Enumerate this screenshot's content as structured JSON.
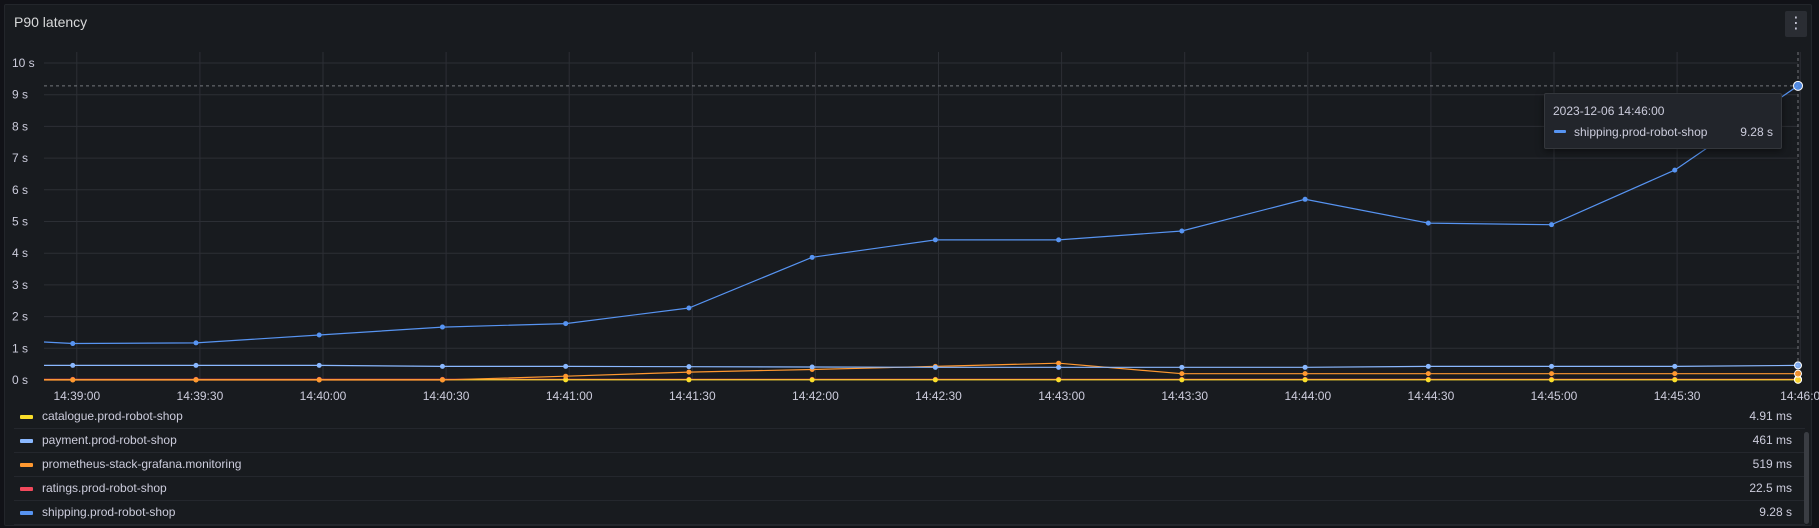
{
  "panel": {
    "title": "P90 latency",
    "menu_icon": "vertical-dots-icon"
  },
  "chart_data": {
    "type": "line",
    "title": "P90 latency",
    "ylim": [
      0,
      10
    ],
    "y_unit": "s",
    "y_ticks": [
      "0 s",
      "1 s",
      "2 s",
      "3 s",
      "4 s",
      "5 s",
      "6 s",
      "7 s",
      "8 s",
      "9 s",
      "10 s"
    ],
    "x_ticks": [
      "14:39:00",
      "14:39:30",
      "14:40:00",
      "14:40:30",
      "14:41:00",
      "14:41:30",
      "14:42:00",
      "14:42:30",
      "14:43:00",
      "14:43:30",
      "14:44:00",
      "14:44:30",
      "14:45:00",
      "14:45:30",
      "14:46:0"
    ],
    "x": [
      "14:38:53",
      "14:39:00",
      "14:39:30",
      "14:40:00",
      "14:40:30",
      "14:41:00",
      "14:41:30",
      "14:42:00",
      "14:42:30",
      "14:43:00",
      "14:43:30",
      "14:44:00",
      "14:44:30",
      "14:45:00",
      "14:45:30",
      "14:46:00"
    ],
    "grid": true,
    "crosshair": {
      "x": "14:46:00",
      "y": 9.28
    },
    "series": [
      {
        "name": "catalogue.prod-robot-shop",
        "color": "#fade2a",
        "legend_value": "4.91 ms",
        "values": [
          0.005,
          0.005,
          0.005,
          0.005,
          0.005,
          0.005,
          0.005,
          0.005,
          0.005,
          0.005,
          0.005,
          0.005,
          0.005,
          0.005,
          0.005,
          0.005
        ]
      },
      {
        "name": "payment.prod-robot-shop",
        "color": "#8ab8ff",
        "legend_value": "461 ms",
        "values": [
          0.46,
          0.46,
          0.46,
          0.46,
          0.43,
          0.43,
          0.42,
          0.41,
          0.4,
          0.4,
          0.4,
          0.4,
          0.43,
          0.43,
          0.43,
          0.46
        ]
      },
      {
        "name": "prometheus-stack-grafana.monitoring",
        "color": "#ff9830",
        "legend_value": "519 ms",
        "values": [
          0.0,
          0.0,
          0.0,
          0.0,
          0.0,
          0.12,
          0.25,
          0.33,
          0.43,
          0.53,
          0.2,
          0.2,
          0.2,
          0.2,
          0.2,
          0.2
        ]
      },
      {
        "name": "ratings.prod-robot-shop",
        "color": "#f2495c",
        "legend_value": "22.5 ms",
        "values": [
          0.02,
          0.02,
          0.02,
          0.02,
          0.02,
          0.02,
          0.02,
          0.02,
          0.02,
          0.02,
          0.02,
          0.02,
          0.02,
          0.02,
          0.02,
          0.02
        ]
      },
      {
        "name": "shipping.prod-robot-shop",
        "color": "#5794f2",
        "legend_value": "9.28 s",
        "values": [
          1.2,
          1.15,
          1.17,
          1.42,
          1.67,
          1.78,
          2.27,
          3.87,
          4.42,
          4.42,
          4.7,
          5.7,
          4.95,
          4.9,
          6.62,
          9.28
        ]
      }
    ],
    "tooltip": {
      "time": "2023-12-06 14:46:00",
      "series_name": "shipping.prod-robot-shop",
      "value": "9.28 s"
    }
  }
}
